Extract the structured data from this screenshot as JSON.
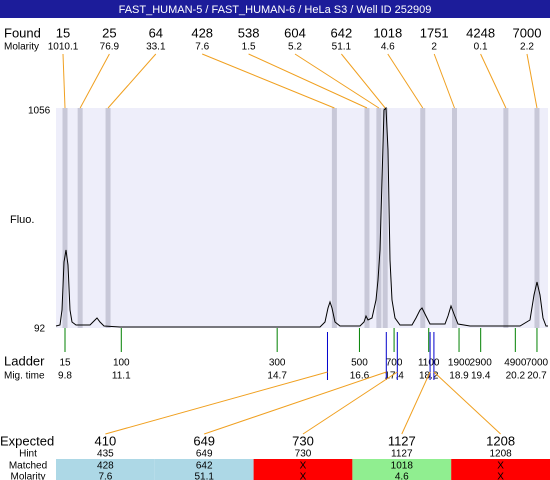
{
  "title": "FAST_HUMAN-5 / FAST_HUMAN-6 / HeLa S3 / Well ID 252909",
  "found": {
    "label": "Found",
    "molarity_label": "Molarity",
    "sizes": [
      15,
      25,
      64,
      428,
      538,
      604,
      642,
      1018,
      1751,
      4248,
      7000
    ],
    "molarity": [
      1010.1,
      76.9,
      33.1,
      7.6,
      1.5,
      5.2,
      51.1,
      4.6,
      2,
      0.1,
      2.2
    ]
  },
  "fluo": {
    "label": "Fluo.",
    "max": 1056,
    "min": 92
  },
  "ladder": {
    "label": "Ladder",
    "mig_label": "Mig. time",
    "sizes": [
      15,
      100,
      300,
      500,
      700,
      1100,
      1900,
      2900,
      4900,
      7000
    ],
    "mig_times": [
      9.8,
      11.1,
      14.7,
      16.6,
      17.4,
      18.2,
      18.9,
      19.4,
      20.2,
      20.7
    ]
  },
  "expected": {
    "label": "Expected",
    "hint_label": "Hint",
    "matched_label": "Matched",
    "molarity_label": "Molarity",
    "columns": [
      {
        "expected": 410,
        "hint": 435,
        "matched": 428,
        "molarity": 7.6,
        "color": "#add8e6"
      },
      {
        "expected": 649,
        "hint": 649,
        "matched": 642,
        "molarity": 51.1,
        "color": "#add8e6"
      },
      {
        "expected": 730,
        "hint": 730,
        "matched": "X",
        "molarity": "X",
        "color": "#ff0000"
      },
      {
        "expected": 1127,
        "hint": 1127,
        "matched": 1018,
        "molarity": 4.6,
        "color": "#90ee90"
      },
      {
        "expected": 1208,
        "hint": 1208,
        "matched": "X",
        "molarity": "X",
        "color": "#ff0000"
      }
    ]
  }
}
